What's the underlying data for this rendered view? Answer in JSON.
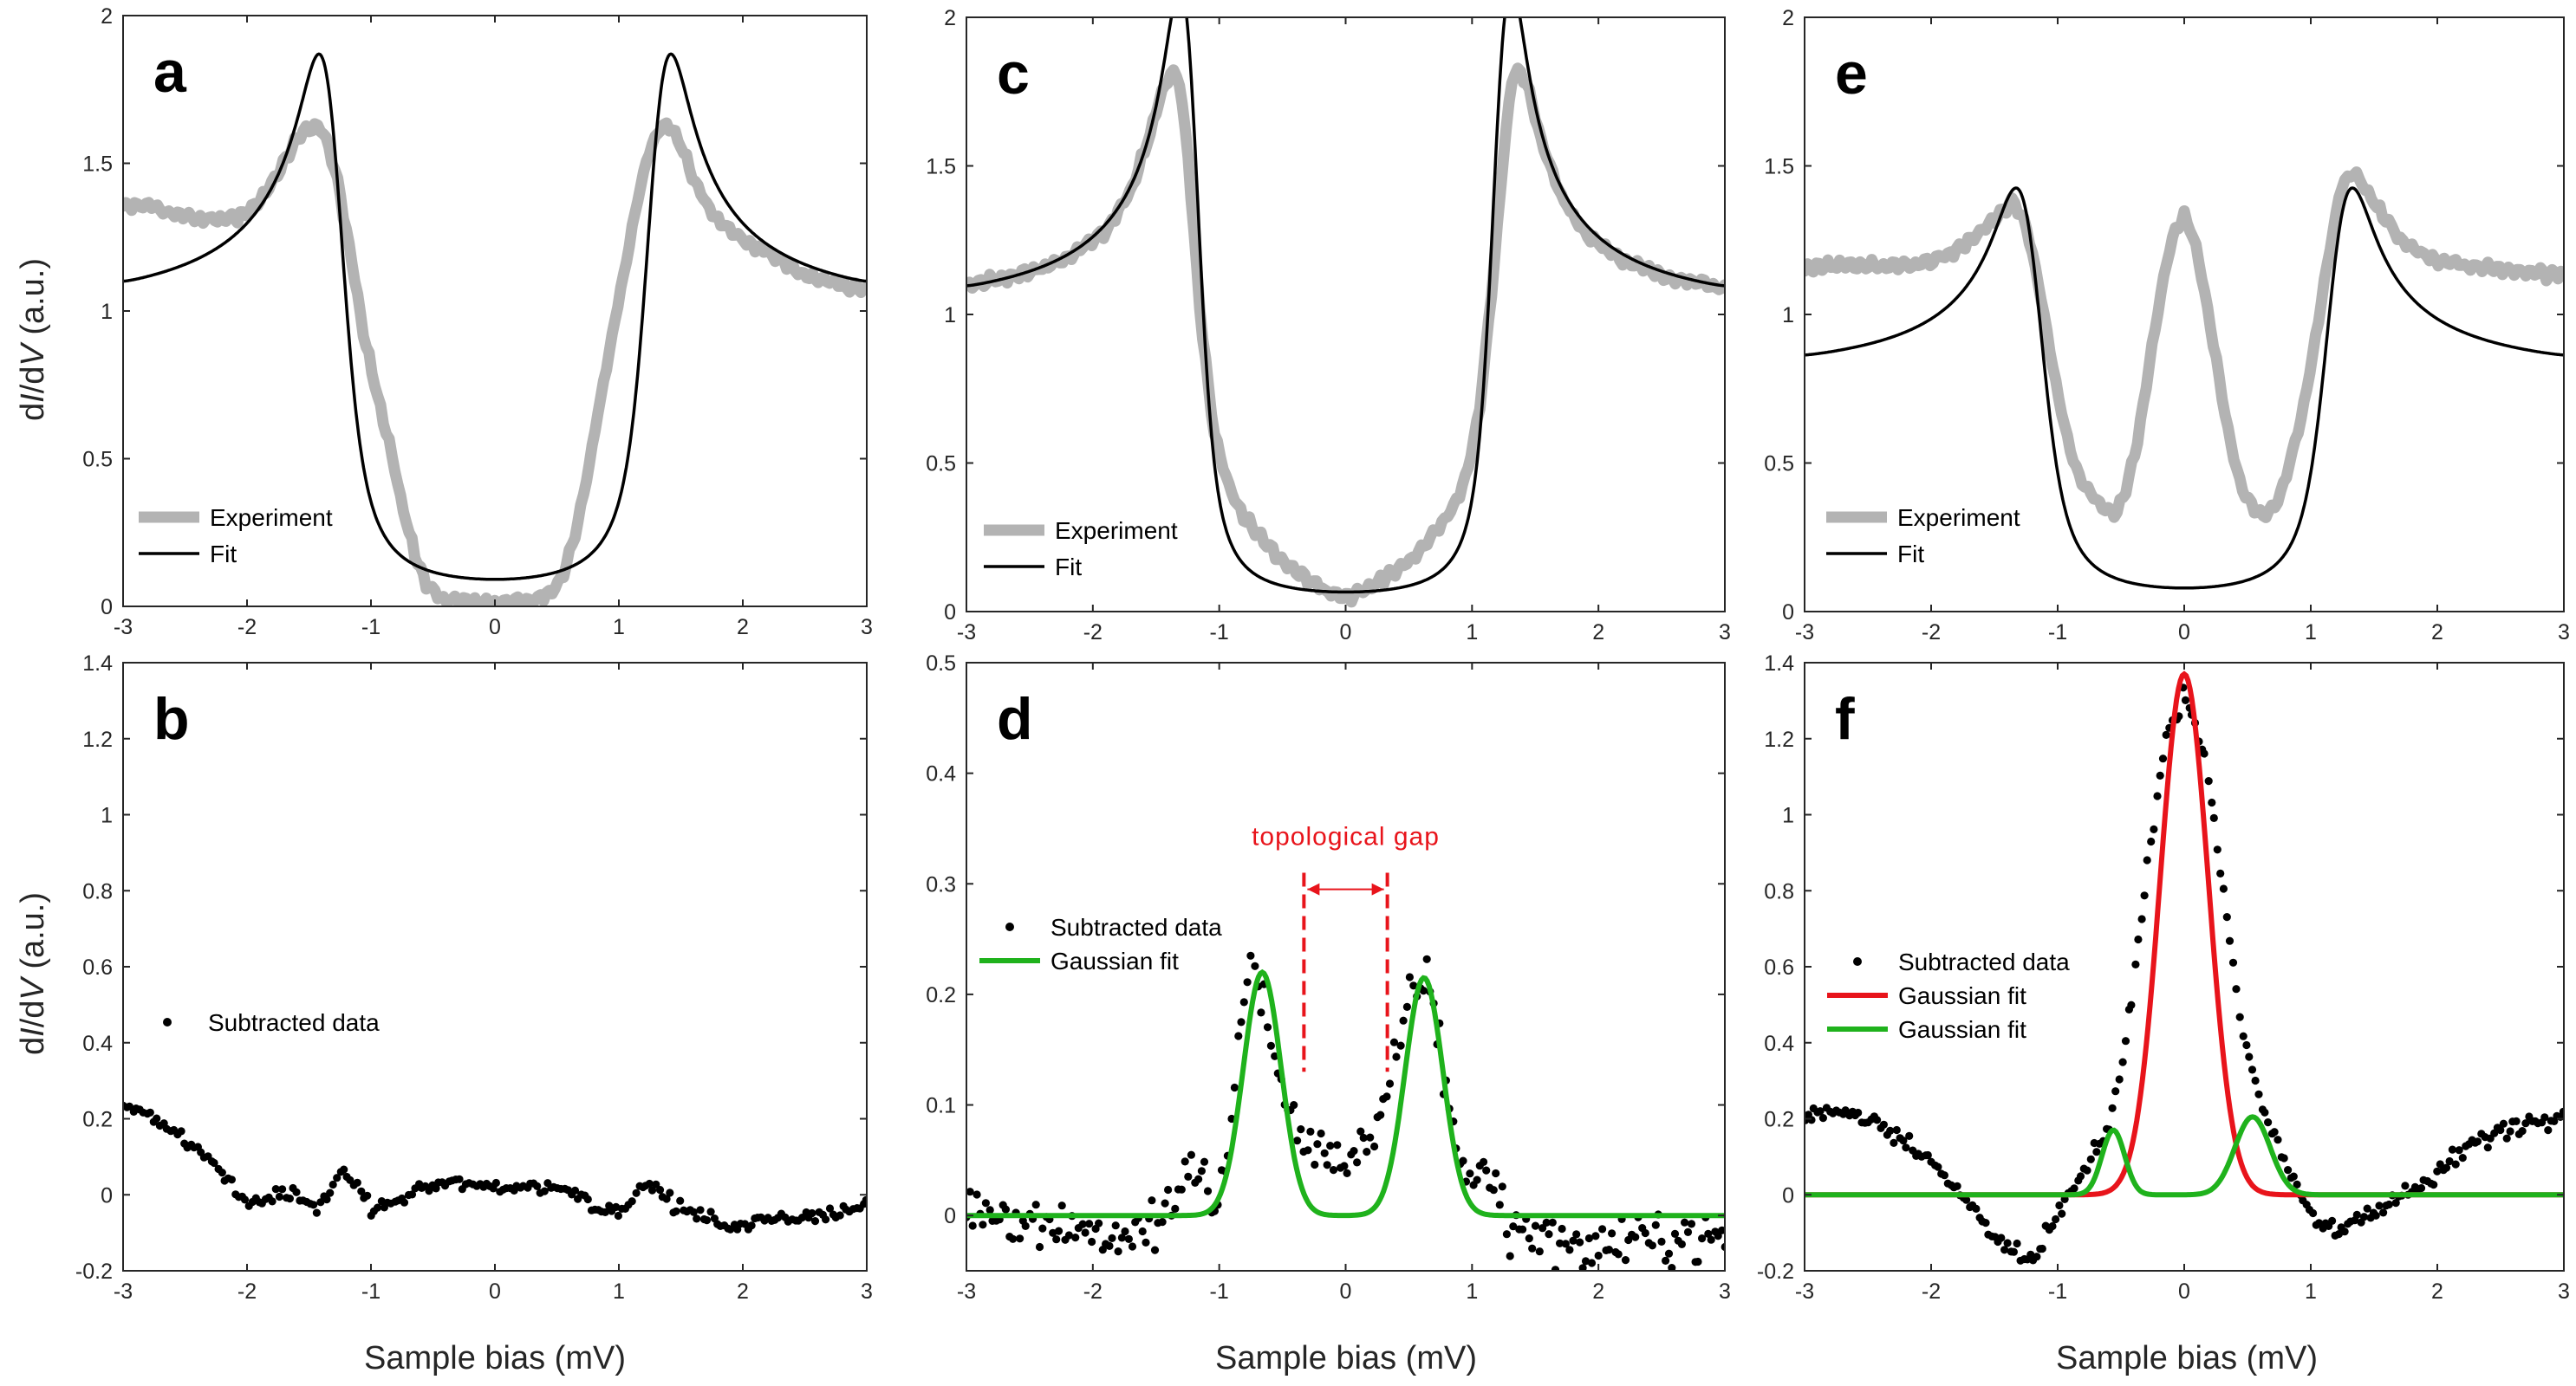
{
  "figure": {
    "xlabel": "Sample bias (mV)",
    "ylabel_prefix": "d",
    "ylabel_I": "I",
    "ylabel_slash": "/d",
    "ylabel_V": "V",
    "ylabel_suffix": " (a.u.)"
  },
  "chart_data": [
    {
      "id": "a",
      "letter": "a",
      "type": "line",
      "xlim": [
        -3,
        3
      ],
      "ylim": [
        0,
        2
      ],
      "xticks": [
        -3,
        -2,
        -1,
        0,
        1,
        2,
        3
      ],
      "yticks": [
        0,
        0.5,
        1,
        1.5,
        2
      ],
      "ytick_labels": [
        "0",
        "0.5",
        "1",
        "1.5",
        "2"
      ],
      "legend": [
        "Experiment",
        "Fit"
      ],
      "series": [
        {
          "name": "Experiment",
          "style": "experiment",
          "x": [
            -3,
            -2.8,
            -2.6,
            -2.4,
            -2.2,
            -2.0,
            -1.85,
            -1.7,
            -1.6,
            -1.5,
            -1.42,
            -1.35,
            -1.25,
            -1.15,
            -1.05,
            -0.95,
            -0.85,
            -0.75,
            -0.65,
            -0.55,
            -0.45,
            -0.3,
            0,
            0.3,
            0.45,
            0.55,
            0.65,
            0.75,
            0.85,
            0.95,
            1.05,
            1.15,
            1.25,
            1.33,
            1.4,
            1.5,
            1.6,
            1.75,
            1.9,
            2.1,
            2.3,
            2.5,
            2.7,
            2.85,
            3.0
          ],
          "y": [
            1.35,
            1.36,
            1.33,
            1.31,
            1.31,
            1.33,
            1.4,
            1.5,
            1.58,
            1.62,
            1.63,
            1.57,
            1.4,
            1.15,
            0.9,
            0.72,
            0.55,
            0.35,
            0.18,
            0.07,
            0.03,
            0.02,
            0.01,
            0.02,
            0.04,
            0.1,
            0.25,
            0.45,
            0.7,
            0.92,
            1.15,
            1.38,
            1.55,
            1.62,
            1.63,
            1.57,
            1.45,
            1.33,
            1.27,
            1.22,
            1.17,
            1.12,
            1.1,
            1.08,
            1.07
          ]
        },
        {
          "name": "Fit",
          "style": "fit",
          "model": "dynes",
          "gap": 1.3,
          "gamma": 0.12,
          "norm": 0.99,
          "smear": 0.08
        }
      ]
    },
    {
      "id": "c",
      "letter": "c",
      "type": "line",
      "xlim": [
        -3,
        3
      ],
      "ylim": [
        0,
        2
      ],
      "xticks": [
        -3,
        -2,
        -1,
        0,
        1,
        2,
        3
      ],
      "yticks": [
        0,
        0.5,
        1,
        1.5,
        2
      ],
      "ytick_labels": [
        "0",
        "0.5",
        "1",
        "1.5",
        "2"
      ],
      "legend": [
        "Experiment",
        "Fit"
      ],
      "series": [
        {
          "name": "Experiment",
          "style": "experiment",
          "x": [
            -3,
            -2.6,
            -2.2,
            -1.9,
            -1.7,
            -1.55,
            -1.45,
            -1.38,
            -1.32,
            -1.25,
            -1.15,
            -1.05,
            -0.95,
            -0.85,
            -0.7,
            -0.5,
            -0.3,
            -0.15,
            0,
            0.15,
            0.3,
            0.5,
            0.7,
            0.85,
            0.95,
            1.05,
            1.15,
            1.25,
            1.32,
            1.38,
            1.45,
            1.55,
            1.7,
            1.9,
            2.2,
            2.6,
            3.0
          ],
          "y": [
            1.1,
            1.13,
            1.19,
            1.28,
            1.42,
            1.6,
            1.75,
            1.82,
            1.8,
            1.55,
            1.0,
            0.62,
            0.45,
            0.35,
            0.26,
            0.17,
            0.11,
            0.07,
            0.05,
            0.07,
            0.11,
            0.17,
            0.26,
            0.35,
            0.45,
            0.65,
            1.05,
            1.55,
            1.8,
            1.82,
            1.75,
            1.58,
            1.4,
            1.27,
            1.18,
            1.12,
            1.09
          ]
        },
        {
          "name": "Fit",
          "style": "fit",
          "model": "dynes",
          "gap": 1.22,
          "gamma": 0.08,
          "norm": 1.0,
          "smear": 0.07
        }
      ]
    },
    {
      "id": "e",
      "letter": "e",
      "type": "line",
      "xlim": [
        -3,
        3
      ],
      "ylim": [
        0,
        2
      ],
      "xticks": [
        -3,
        -2,
        -1,
        0,
        1,
        2,
        3
      ],
      "yticks": [
        0,
        0.5,
        1,
        1.5,
        2
      ],
      "ytick_labels": [
        "0",
        "0.5",
        "1",
        "1.5",
        "2"
      ],
      "legend": [
        "Experiment",
        "Fit"
      ],
      "series": [
        {
          "name": "Experiment",
          "style": "experiment",
          "x": [
            -3,
            -2.7,
            -2.4,
            -2.1,
            -1.8,
            -1.5,
            -1.35,
            -1.25,
            -1.15,
            -1.05,
            -0.95,
            -0.85,
            -0.75,
            -0.65,
            -0.55,
            -0.45,
            -0.35,
            -0.25,
            -0.15,
            -0.08,
            0,
            0.08,
            0.15,
            0.25,
            0.35,
            0.45,
            0.55,
            0.65,
            0.75,
            0.85,
            0.95,
            1.05,
            1.15,
            1.25,
            1.35,
            1.5,
            1.7,
            2.0,
            2.3,
            2.6,
            2.8,
            3.0
          ],
          "y": [
            1.15,
            1.17,
            1.16,
            1.17,
            1.21,
            1.32,
            1.38,
            1.3,
            1.1,
            0.85,
            0.62,
            0.47,
            0.4,
            0.36,
            0.32,
            0.42,
            0.62,
            0.9,
            1.15,
            1.28,
            1.33,
            1.25,
            1.1,
            0.85,
            0.6,
            0.42,
            0.34,
            0.32,
            0.38,
            0.52,
            0.7,
            0.95,
            1.22,
            1.45,
            1.48,
            1.38,
            1.25,
            1.18,
            1.16,
            1.15,
            1.14,
            1.13
          ]
        },
        {
          "name": "Fit",
          "style": "fit",
          "model": "dynes",
          "gap": 1.2,
          "gamma": 0.12,
          "norm": 0.79,
          "smear": 0.09
        }
      ]
    },
    {
      "id": "b",
      "letter": "b",
      "type": "scatter",
      "xlim": [
        -3,
        3
      ],
      "ylim": [
        -0.2,
        1.4
      ],
      "xticks": [
        -3,
        -2,
        -1,
        0,
        1,
        2,
        3
      ],
      "yticks": [
        -0.2,
        0,
        0.2,
        0.4,
        0.6,
        0.8,
        1,
        1.2,
        1.4
      ],
      "ytick_labels": [
        "-0.2",
        "0",
        "0.2",
        "0.4",
        "0.6",
        "0.8",
        "1",
        "1.2",
        "1.4"
      ],
      "legend": [
        "Subtracted data"
      ],
      "series": [
        {
          "name": "Subtracted data",
          "style": "dots",
          "n": 220,
          "noise": 0.018,
          "x": [
            -3,
            -2.8,
            -2.5,
            -2.25,
            -2.05,
            -1.9,
            -1.7,
            -1.55,
            -1.45,
            -1.3,
            -1.2,
            -1.1,
            -1.0,
            -0.8,
            -0.6,
            -0.3,
            0,
            0.3,
            0.5,
            0.7,
            0.85,
            1.0,
            1.2,
            1.3,
            1.45,
            1.6,
            1.8,
            2.0,
            2.2,
            2.5,
            2.8,
            3.0
          ],
          "y": [
            0.23,
            0.22,
            0.14,
            0.08,
            -0.01,
            -0.02,
            0.01,
            -0.01,
            -0.04,
            0.03,
            0.05,
            0.02,
            -0.04,
            -0.02,
            0.02,
            0.03,
            0.02,
            0.02,
            0.02,
            0.0,
            -0.04,
            -0.04,
            0.02,
            0.02,
            -0.03,
            -0.05,
            -0.07,
            -0.09,
            -0.06,
            -0.06,
            -0.05,
            -0.02
          ]
        }
      ]
    },
    {
      "id": "d",
      "letter": "d",
      "type": "scatter",
      "xlim": [
        -3,
        3
      ],
      "ylim": [
        -0.05,
        0.5
      ],
      "xticks": [
        -3,
        -2,
        -1,
        0,
        1,
        2,
        3
      ],
      "yticks": [
        0,
        0.1,
        0.2,
        0.3,
        0.4,
        0.5
      ],
      "ytick_labels": [
        "0",
        "0.1",
        "0.2",
        "0.3",
        "0.4",
        "0.5"
      ],
      "legend": [
        "Subtracted data",
        "Gaussian fit"
      ],
      "annotation": {
        "text": "topological gap",
        "x_left": -0.33,
        "x_right": 0.33,
        "y_top": 0.31,
        "y_bottom": 0.13,
        "arrow_y": 0.295,
        "text_y": 0.335
      },
      "series": [
        {
          "name": "Subtracted data",
          "style": "dots",
          "n": 230,
          "noise": 0.022,
          "x": [
            -3,
            -2.6,
            -2.2,
            -1.8,
            -1.5,
            -1.3,
            -1.15,
            -1.05,
            -0.95,
            -0.85,
            -0.75,
            -0.65,
            -0.55,
            -0.45,
            -0.35,
            -0.25,
            -0.1,
            0,
            0.1,
            0.25,
            0.35,
            0.45,
            0.55,
            0.62,
            0.7,
            0.8,
            0.9,
            1.0,
            1.1,
            1.3,
            1.6,
            2.0,
            2.5,
            3.0
          ],
          "y": [
            0.01,
            0.0,
            -0.01,
            -0.02,
            -0.01,
            0.02,
            0.05,
            -0.01,
            0.05,
            0.15,
            0.23,
            0.2,
            0.13,
            0.09,
            0.07,
            0.06,
            0.05,
            0.055,
            0.06,
            0.07,
            0.11,
            0.17,
            0.21,
            0.22,
            0.19,
            0.11,
            0.05,
            0.03,
            0.05,
            -0.01,
            -0.02,
            -0.03,
            -0.02,
            -0.02
          ]
        },
        {
          "name": "Gaussian fit",
          "style": "gauss-green",
          "model": "gaussians",
          "components": [
            {
              "amp": 0.22,
              "mu": -0.66,
              "sigma": 0.15
            },
            {
              "amp": 0.215,
              "mu": 0.62,
              "sigma": 0.15
            }
          ]
        }
      ]
    },
    {
      "id": "f",
      "letter": "f",
      "type": "scatter",
      "xlim": [
        -3,
        3
      ],
      "ylim": [
        -0.2,
        1.4
      ],
      "xticks": [
        -3,
        -2,
        -1,
        0,
        1,
        2,
        3
      ],
      "yticks": [
        -0.2,
        0,
        0.2,
        0.4,
        0.6,
        0.8,
        1,
        1.2,
        1.4
      ],
      "ytick_labels": [
        "-0.2",
        "0",
        "0.2",
        "0.4",
        "0.6",
        "0.8",
        "1",
        "1.2",
        "1.4"
      ],
      "legend": [
        "Subtracted data",
        "Gaussian fit",
        "Gaussian fit"
      ],
      "series": [
        {
          "name": "Subtracted data",
          "style": "dots",
          "n": 240,
          "noise": 0.025,
          "x": [
            -3,
            -2.7,
            -2.4,
            -2.1,
            -1.85,
            -1.6,
            -1.4,
            -1.2,
            -1.0,
            -0.8,
            -0.6,
            -0.45,
            -0.3,
            -0.15,
            0,
            0.15,
            0.3,
            0.45,
            0.6,
            0.75,
            0.9,
            1.05,
            1.2,
            1.4,
            1.6,
            1.8,
            2.0,
            2.2,
            2.5,
            2.8,
            3.0
          ],
          "y": [
            0.21,
            0.22,
            0.19,
            0.12,
            0.03,
            -0.06,
            -0.15,
            -0.18,
            -0.05,
            0.05,
            0.17,
            0.42,
            0.85,
            1.18,
            1.33,
            1.18,
            0.82,
            0.45,
            0.25,
            0.12,
            0.0,
            -0.07,
            -0.1,
            -0.05,
            -0.02,
            0.01,
            0.05,
            0.12,
            0.17,
            0.2,
            0.22
          ]
        },
        {
          "name": "Gaussian fit",
          "style": "gauss-red",
          "model": "gaussians",
          "components": [
            {
              "amp": 1.37,
              "mu": 0.0,
              "sigma": 0.19
            }
          ]
        },
        {
          "name": "Gaussian fit",
          "style": "gauss-green",
          "model": "gaussians",
          "components": [
            {
              "amp": 0.17,
              "mu": -0.56,
              "sigma": 0.09
            },
            {
              "amp": 0.205,
              "mu": 0.54,
              "sigma": 0.14
            }
          ]
        }
      ]
    }
  ]
}
